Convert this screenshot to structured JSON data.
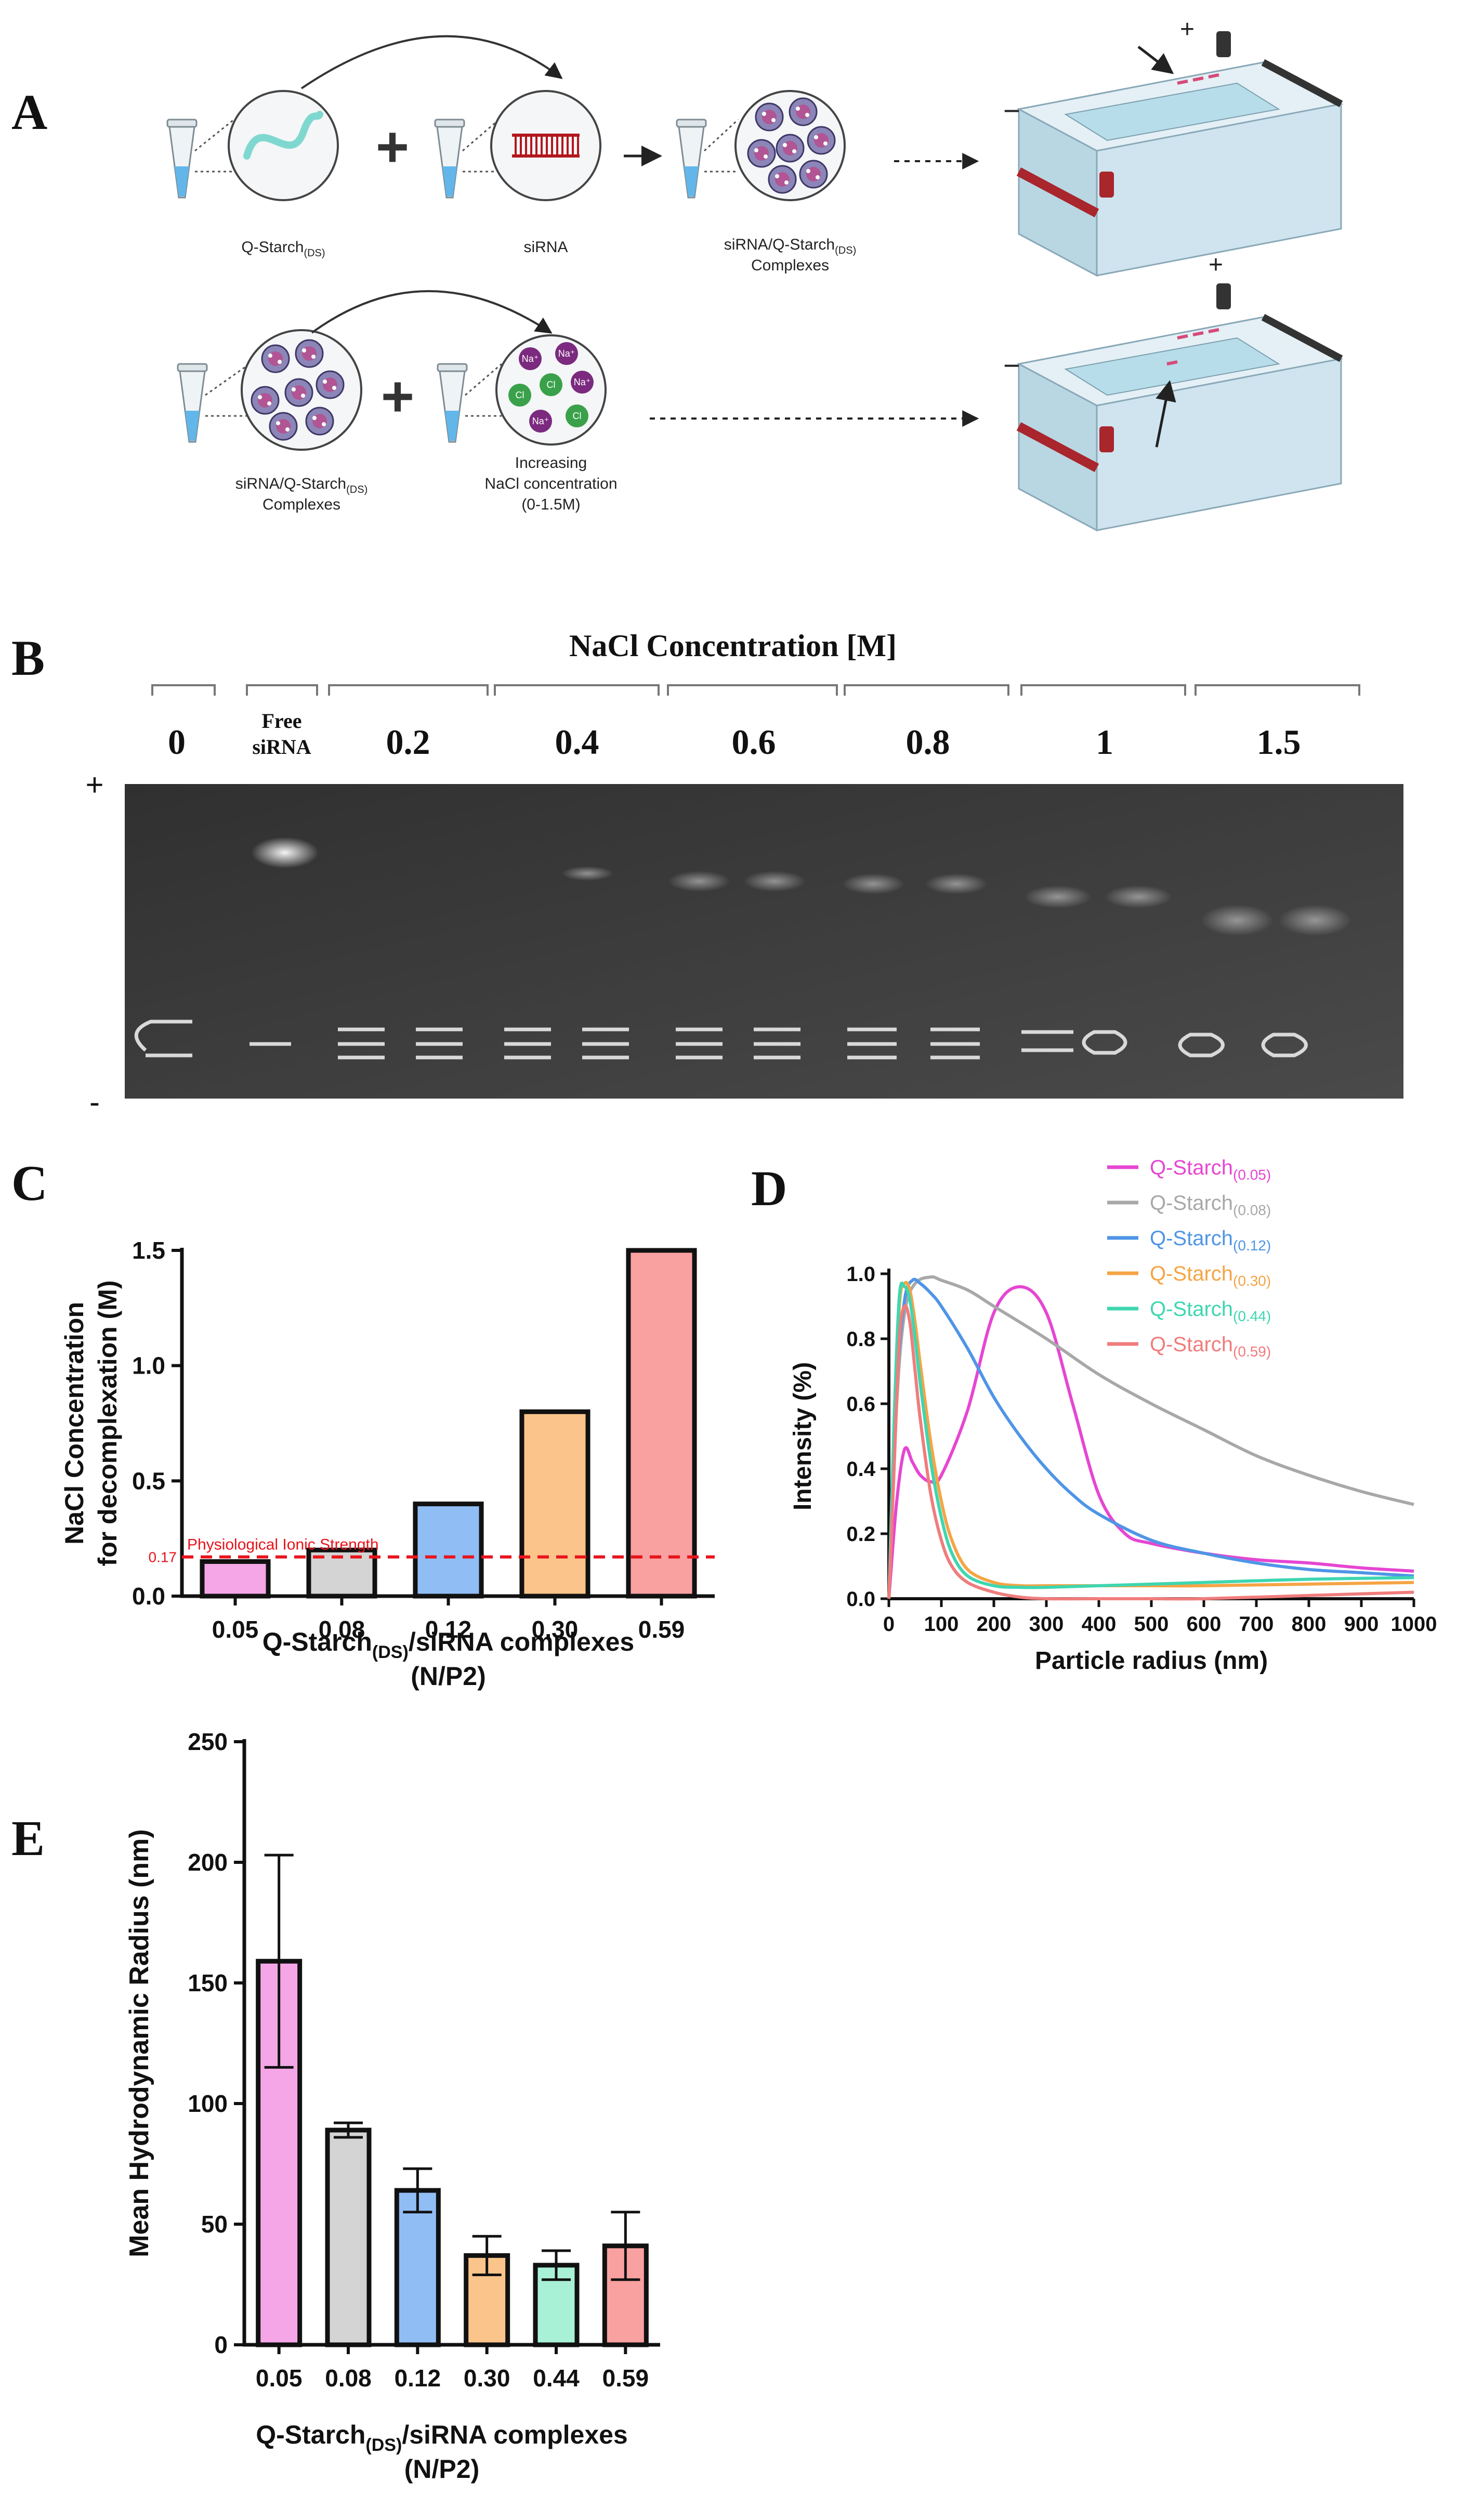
{
  "panels": {
    "A": "A",
    "B": "B",
    "C": "C",
    "D": "D",
    "E": "E"
  },
  "schematic": {
    "qstarch_label": "Q-Starch",
    "qstarch_sub": "(DS)",
    "sirna_label": "siRNA",
    "complex_label_line1": "siRNA/Q-Starch",
    "complex_label_sub": "(DS)",
    "complex_label_line2": "Complexes",
    "nacl_label_line1": "Increasing",
    "nacl_label_line2": "NaCl concentration",
    "nacl_label_line3": "(0-1.5M)",
    "plus": "+",
    "minus": "−",
    "ion_na": "Na⁺",
    "ion_cl": "Cl"
  },
  "gel": {
    "title": "NaCl Concentration [M]",
    "lanes": [
      "0",
      "Free siRNA",
      "0.2",
      "0.4",
      "0.6",
      "0.8",
      "1",
      "1.5"
    ],
    "free_line1": "Free",
    "free_line2": "siRNA",
    "plus": "+",
    "minus": "-"
  },
  "chart_data": [
    {
      "id": "C",
      "type": "bar",
      "ylabel_line1": "NaCl Concentration",
      "ylabel_line2": "for decomplexation (M)",
      "xlabel_main": "Q-Starch",
      "xlabel_sub": "(DS)",
      "xlabel_rest": "/siRNA complexes",
      "xlabel_line2": "(N/P2)",
      "categories": [
        "0.05",
        "0.08",
        "0.12",
        "0.30",
        "0.59"
      ],
      "values": [
        0.15,
        0.2,
        0.4,
        0.8,
        1.5
      ],
      "colors": [
        "#f4a6e6",
        "#d4d4d4",
        "#91bdf5",
        "#fbc48a",
        "#f9a0a0"
      ],
      "ylim": [
        0,
        1.5
      ],
      "yticks": [
        "0.0",
        "0.5",
        "1.0",
        "1.5"
      ],
      "reference_line": {
        "value": 0.17,
        "label": "Physiological Ionic Strength",
        "tick_label": "0.17",
        "color": "#e8141b"
      }
    },
    {
      "id": "D",
      "type": "line",
      "ylabel": "Intensity (%)",
      "xlabel": "Particle radius (nm)",
      "xlim": [
        0,
        1000
      ],
      "ylim": [
        0,
        1.0
      ],
      "xticks": [
        "0",
        "100",
        "200",
        "300",
        "400",
        "500",
        "600",
        "700",
        "800",
        "900",
        "1000"
      ],
      "yticks": [
        "0.0",
        "0.2",
        "0.4",
        "0.6",
        "0.8",
        "1.0"
      ],
      "series": [
        {
          "name": "Q-Starch",
          "sub": "(0.05)",
          "color": "#e646d2",
          "x": [
            0,
            15,
            30,
            45,
            60,
            80,
            100,
            150,
            200,
            250,
            300,
            350,
            400,
            450,
            500,
            600,
            700,
            800,
            900,
            1000
          ],
          "y": [
            0,
            0.3,
            0.46,
            0.42,
            0.38,
            0.36,
            0.38,
            0.58,
            0.88,
            0.96,
            0.88,
            0.6,
            0.32,
            0.2,
            0.17,
            0.14,
            0.12,
            0.11,
            0.095,
            0.085
          ]
        },
        {
          "name": "Q-Starch",
          "sub": "(0.08)",
          "color": "#a8a8a8",
          "x": [
            0,
            15,
            30,
            50,
            80,
            100,
            150,
            200,
            300,
            400,
            500,
            600,
            700,
            800,
            900,
            1000
          ],
          "y": [
            0,
            0.6,
            0.88,
            0.97,
            0.99,
            0.98,
            0.95,
            0.9,
            0.8,
            0.69,
            0.6,
            0.52,
            0.44,
            0.38,
            0.33,
            0.29
          ]
        },
        {
          "name": "Q-Starch",
          "sub": "(0.12)",
          "color": "#4f95e6",
          "x": [
            0,
            15,
            30,
            45,
            60,
            80,
            100,
            150,
            200,
            250,
            300,
            350,
            400,
            500,
            600,
            700,
            800,
            900,
            1000
          ],
          "y": [
            0,
            0.65,
            0.92,
            0.98,
            0.97,
            0.94,
            0.9,
            0.77,
            0.62,
            0.5,
            0.4,
            0.32,
            0.26,
            0.18,
            0.14,
            0.11,
            0.09,
            0.08,
            0.07
          ]
        },
        {
          "name": "Q-Starch",
          "sub": "(0.30)",
          "color": "#f5a445",
          "x": [
            0,
            10,
            20,
            30,
            40,
            50,
            60,
            80,
            100,
            120,
            150,
            200,
            250,
            300,
            400,
            500,
            600,
            800,
            1000
          ],
          "y": [
            0,
            0.5,
            0.9,
            0.97,
            0.95,
            0.85,
            0.72,
            0.48,
            0.3,
            0.18,
            0.09,
            0.05,
            0.04,
            0.04,
            0.04,
            0.04,
            0.04,
            0.045,
            0.05
          ]
        },
        {
          "name": "Q-Starch",
          "sub": "(0.44)",
          "color": "#3ed6b0",
          "x": [
            0,
            10,
            20,
            30,
            40,
            50,
            60,
            80,
            100,
            120,
            150,
            200,
            250,
            300,
            400,
            500,
            600,
            800,
            1000
          ],
          "y": [
            0,
            0.55,
            0.93,
            0.96,
            0.92,
            0.8,
            0.66,
            0.42,
            0.25,
            0.14,
            0.07,
            0.04,
            0.035,
            0.035,
            0.04,
            0.045,
            0.05,
            0.06,
            0.065
          ]
        },
        {
          "name": "Q-Starch",
          "sub": "(0.59)",
          "color": "#f07c7c",
          "x": [
            0,
            10,
            20,
            30,
            40,
            50,
            60,
            80,
            100,
            120,
            150,
            200,
            250,
            300,
            400,
            500,
            600,
            800,
            1000
          ],
          "y": [
            0,
            0.4,
            0.8,
            0.9,
            0.85,
            0.7,
            0.55,
            0.32,
            0.18,
            0.1,
            0.05,
            0.02,
            0.005,
            0,
            0,
            0,
            0,
            0.01,
            0.02
          ]
        }
      ]
    },
    {
      "id": "E",
      "type": "bar",
      "ylabel": "Mean Hydrodynamic Radius (nm)",
      "xlabel_main": "Q-Starch",
      "xlabel_sub": "(DS)",
      "xlabel_rest": "/siRNA complexes",
      "xlabel_line2": "(N/P2)",
      "categories": [
        "0.05",
        "0.08",
        "0.12",
        "0.30",
        "0.44",
        "0.59"
      ],
      "values": [
        159,
        89,
        64,
        37,
        33,
        41
      ],
      "errors": [
        44,
        3,
        9,
        8,
        6,
        14
      ],
      "colors": [
        "#f4a6e6",
        "#d4d4d4",
        "#91bdf5",
        "#fbc48a",
        "#a8f0d6",
        "#f9a0a0"
      ],
      "ylim": [
        0,
        250
      ],
      "yticks": [
        "0",
        "50",
        "100",
        "150",
        "200",
        "250"
      ]
    }
  ]
}
